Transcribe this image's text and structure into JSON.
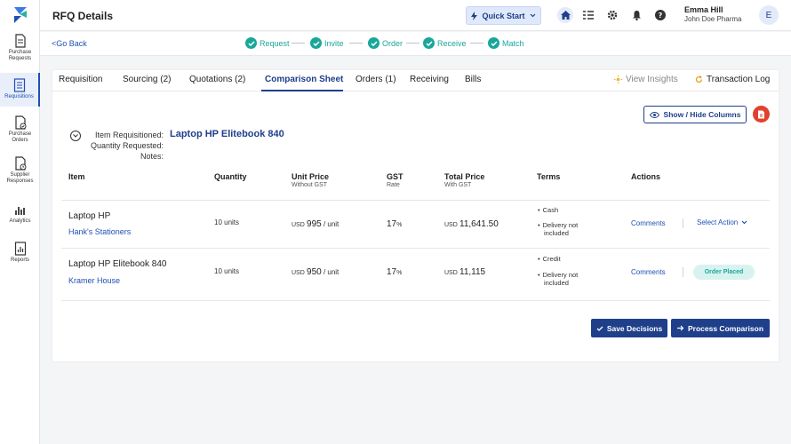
{
  "sidebar": {
    "items": [
      {
        "label_line1": "Purchase",
        "label_line2": "Requests",
        "icon": "document-icon"
      },
      {
        "label_line1": "Requisitions",
        "label_line2": "",
        "icon": "requisition-icon"
      },
      {
        "label_line1": "Purchase",
        "label_line2": "Orders",
        "icon": "order-icon"
      },
      {
        "label_line1": "Supplier",
        "label_line2": "Responses",
        "icon": "response-icon"
      },
      {
        "label_line1": "Analytics",
        "label_line2": "",
        "icon": "analytics-icon"
      },
      {
        "label_line1": "Reports",
        "label_line2": "",
        "icon": "reports-icon"
      }
    ]
  },
  "header": {
    "title": "RFQ Details",
    "quick_start": "Quick Start",
    "user_name": "Emma Hill",
    "user_org": "John Doe Pharma",
    "avatar_initial": "E"
  },
  "subbar": {
    "go_back": "<Go Back",
    "steps": [
      "Request",
      "Invite",
      "Order",
      "Receive",
      "Match"
    ]
  },
  "tabs": [
    "Requisition",
    "Sourcing (2)",
    "Quotations (2)",
    "Comparison Sheet",
    "Orders (1)",
    "Receiving",
    "Bills"
  ],
  "view_insights": "View Insights",
  "transaction_log": "Transaction Log",
  "show_hide_columns": "Show / Hide Columns",
  "meta": {
    "item_label": "Item Requisitioned:",
    "qty_label": "Quantity Requested:",
    "notes_label": "Notes:",
    "item_value": "Laptop HP Elitebook 840"
  },
  "table": {
    "headers": {
      "item": "Item",
      "quantity": "Quantity",
      "unit_price": "Unit Price",
      "unit_price_sub": "Without GST",
      "gst": "GST",
      "gst_sub": "Rate",
      "total_price": "Total Price",
      "total_price_sub": "With GST",
      "terms": "Terms",
      "actions": "Actions"
    },
    "rows": [
      {
        "item": "Laptop HP",
        "vendor": "Hank's Stationers",
        "quantity": "10 units",
        "unit_cur": "USD",
        "unit_price": "995",
        "unit_suffix": "/ unit",
        "gst": "17",
        "gst_suffix": "%",
        "total_cur": "USD",
        "total": "11,641.50",
        "term1": "Cash",
        "term2a": "Delivery not",
        "term2b": "included",
        "comments": "Comments",
        "action": "Select Action"
      },
      {
        "item": "Laptop HP Elitebook 840",
        "vendor": "Kramer House",
        "quantity": "10 units",
        "unit_cur": "USD",
        "unit_price": "950",
        "unit_suffix": "/ unit",
        "gst": "17",
        "gst_suffix": "%",
        "total_cur": "USD",
        "total": "11,115",
        "term1": "Credit",
        "term2a": "Delivery not",
        "term2b": "included",
        "comments": "Comments",
        "status": "Order Placed"
      }
    ]
  },
  "buttons": {
    "save": "Save Decisions",
    "process": "Process Comparison"
  },
  "colors": {
    "primary": "#1f3f8a",
    "success": "#1aa79a",
    "pdf": "#e0422f"
  }
}
